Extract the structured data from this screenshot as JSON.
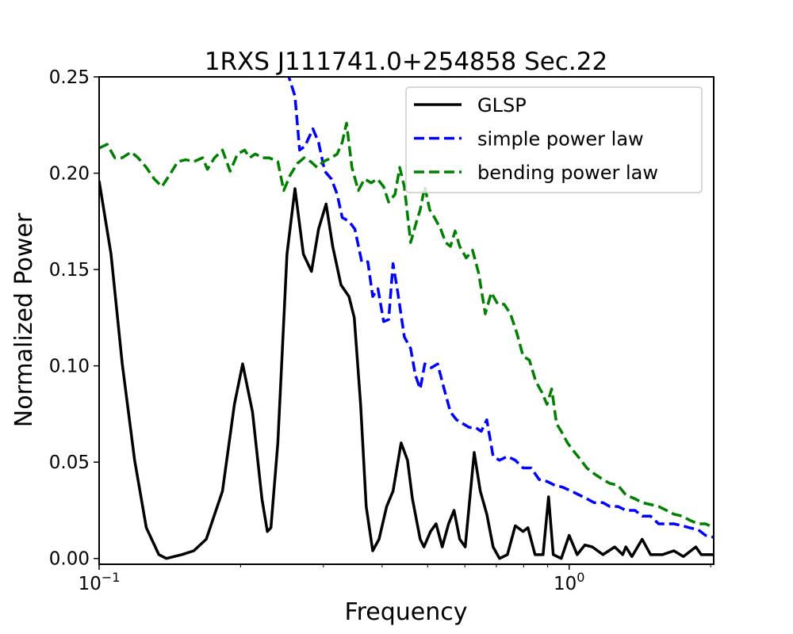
{
  "chart_data": {
    "type": "line",
    "title": "1RXS J111741.0+254858 Sec.22",
    "xlabel": "Frequency",
    "ylabel": "Normalized Power",
    "xscale": "log",
    "xlim": [
      0.1,
      2.03
    ],
    "ylim": [
      -0.003,
      0.25
    ],
    "xticks": [
      {
        "value": 0.1,
        "label": "10",
        "exponent": "−1"
      },
      {
        "value": 1,
        "label": "10",
        "exponent": "0"
      }
    ],
    "xminorticks": [
      0.2,
      0.3,
      0.4,
      0.5,
      0.6,
      0.7,
      0.8,
      0.9,
      2
    ],
    "yticks": [
      {
        "value": 0,
        "label": "0.00"
      },
      {
        "value": 0.05,
        "label": "0.05"
      },
      {
        "value": 0.1,
        "label": "0.10"
      },
      {
        "value": 0.15,
        "label": "0.15"
      },
      {
        "value": 0.2,
        "label": "0.20"
      },
      {
        "value": 0.25,
        "label": "0.25"
      }
    ],
    "grid": false,
    "legend": "upper right",
    "series": [
      {
        "name": "GLSP",
        "color": "#000000",
        "linestyle": "solid",
        "x": [
          0.1,
          0.106,
          0.112,
          0.119,
          0.126,
          0.134,
          0.139,
          0.15,
          0.159,
          0.169,
          0.183,
          0.194,
          0.202,
          0.212,
          0.222,
          0.228,
          0.232,
          0.24,
          0.251,
          0.261,
          0.272,
          0.283,
          0.293,
          0.304,
          0.314,
          0.327,
          0.34,
          0.349,
          0.36,
          0.37,
          0.382,
          0.394,
          0.409,
          0.422,
          0.439,
          0.453,
          0.464,
          0.482,
          0.491,
          0.507,
          0.521,
          0.537,
          0.554,
          0.569,
          0.585,
          0.601,
          0.628,
          0.647,
          0.668,
          0.689,
          0.711,
          0.739,
          0.768,
          0.798,
          0.817,
          0.846,
          0.88,
          0.904,
          0.925,
          0.962,
          1.0,
          1.04,
          1.08,
          1.12,
          1.18,
          1.25,
          1.3,
          1.32,
          1.36,
          1.43,
          1.49,
          1.58,
          1.67,
          1.75,
          1.86,
          1.91,
          2.03
        ],
        "values": [
          0.196,
          0.158,
          0.101,
          0.051,
          0.016,
          0.002,
          0,
          0.002,
          0.004,
          0.01,
          0.035,
          0.08,
          0.101,
          0.076,
          0.031,
          0.014,
          0.016,
          0.06,
          0.158,
          0.192,
          0.158,
          0.149,
          0.171,
          0.184,
          0.162,
          0.142,
          0.136,
          0.125,
          0.08,
          0.027,
          0.004,
          0.01,
          0.027,
          0.035,
          0.06,
          0.051,
          0.031,
          0.01,
          0.006,
          0.014,
          0.018,
          0.006,
          0.018,
          0.025,
          0.01,
          0.006,
          0.055,
          0.035,
          0.023,
          0.006,
          0,
          0.002,
          0.017,
          0.014,
          0.016,
          0.002,
          0.002,
          0.032,
          0.002,
          0,
          0.012,
          0.002,
          0.007,
          0.006,
          0.002,
          0.006,
          0.002,
          0.006,
          0.001,
          0.01,
          0.002,
          0.002,
          0.004,
          0.001,
          0.006,
          0.002,
          0.002
        ]
      },
      {
        "name": "simple power law",
        "color": "#0000ff",
        "linestyle": "dashed",
        "x": [
          0.251,
          0.261,
          0.267,
          0.274,
          0.285,
          0.293,
          0.302,
          0.312,
          0.321,
          0.329,
          0.34,
          0.35,
          0.362,
          0.373,
          0.382,
          0.392,
          0.403,
          0.413,
          0.422,
          0.432,
          0.446,
          0.46,
          0.471,
          0.482,
          0.493,
          0.509,
          0.525,
          0.542,
          0.559,
          0.576,
          0.594,
          0.613,
          0.632,
          0.65,
          0.668,
          0.689,
          0.711,
          0.739,
          0.768,
          0.798,
          0.83,
          0.863,
          0.897,
          0.932,
          0.969,
          1.01,
          1.05,
          1.09,
          1.13,
          1.18,
          1.22,
          1.27,
          1.32,
          1.38,
          1.43,
          1.49,
          1.55,
          1.61,
          1.67,
          1.74,
          1.8,
          1.88,
          1.95,
          2.03
        ],
        "values": [
          0.253,
          0.24,
          0.212,
          0.214,
          0.223,
          0.216,
          0.201,
          0.197,
          0.189,
          0.177,
          0.175,
          0.171,
          0.154,
          0.154,
          0.136,
          0.14,
          0.123,
          0.124,
          0.153,
          0.138,
          0.115,
          0.109,
          0.095,
          0.088,
          0.101,
          0.099,
          0.101,
          0.088,
          0.076,
          0.072,
          0.07,
          0.068,
          0.068,
          0.066,
          0.072,
          0.053,
          0.051,
          0.053,
          0.051,
          0.047,
          0.047,
          0.041,
          0.04,
          0.038,
          0.037,
          0.035,
          0.033,
          0.031,
          0.029,
          0.029,
          0.027,
          0.027,
          0.025,
          0.025,
          0.022,
          0.022,
          0.018,
          0.018,
          0.018,
          0.017,
          0.016,
          0.015,
          0.012,
          0.011
        ]
      },
      {
        "name": "bending power law",
        "color": "#008000",
        "linestyle": "dashed",
        "x": [
          0.1,
          0.104,
          0.108,
          0.112,
          0.117,
          0.121,
          0.126,
          0.131,
          0.136,
          0.142,
          0.147,
          0.153,
          0.159,
          0.166,
          0.17,
          0.176,
          0.183,
          0.19,
          0.197,
          0.204,
          0.209,
          0.215,
          0.222,
          0.23,
          0.24,
          0.247,
          0.255,
          0.264,
          0.273,
          0.282,
          0.291,
          0.3,
          0.312,
          0.321,
          0.329,
          0.336,
          0.345,
          0.356,
          0.367,
          0.379,
          0.391,
          0.403,
          0.413,
          0.426,
          0.436,
          0.446,
          0.46,
          0.471,
          0.482,
          0.493,
          0.505,
          0.517,
          0.533,
          0.546,
          0.559,
          0.572,
          0.585,
          0.604,
          0.623,
          0.642,
          0.663,
          0.683,
          0.705,
          0.727,
          0.75,
          0.774,
          0.798,
          0.823,
          0.849,
          0.876,
          0.897,
          0.918,
          0.94,
          0.962,
          0.992,
          1.02,
          1.06,
          1.09,
          1.13,
          1.18,
          1.22,
          1.27,
          1.32,
          1.38,
          1.43,
          1.49,
          1.55,
          1.61,
          1.67,
          1.74,
          1.8,
          1.88,
          1.95,
          2.03
        ],
        "values": [
          0.213,
          0.215,
          0.208,
          0.208,
          0.211,
          0.208,
          0.203,
          0.197,
          0.193,
          0.2,
          0.206,
          0.207,
          0.206,
          0.208,
          0.202,
          0.208,
          0.212,
          0.201,
          0.21,
          0.212,
          0.208,
          0.21,
          0.208,
          0.208,
          0.206,
          0.191,
          0.199,
          0.205,
          0.208,
          0.206,
          0.203,
          0.206,
          0.208,
          0.21,
          0.216,
          0.226,
          0.203,
          0.191,
          0.197,
          0.195,
          0.197,
          0.193,
          0.185,
          0.189,
          0.203,
          0.193,
          0.164,
          0.173,
          0.181,
          0.193,
          0.181,
          0.177,
          0.171,
          0.164,
          0.162,
          0.17,
          0.162,
          0.156,
          0.16,
          0.148,
          0.127,
          0.138,
          0.132,
          0.132,
          0.127,
          0.117,
          0.105,
          0.103,
          0.092,
          0.086,
          0.08,
          0.088,
          0.07,
          0.066,
          0.06,
          0.056,
          0.051,
          0.047,
          0.044,
          0.041,
          0.039,
          0.038,
          0.033,
          0.031,
          0.029,
          0.028,
          0.027,
          0.025,
          0.023,
          0.022,
          0.02,
          0.018,
          0.018,
          0.016
        ]
      }
    ]
  }
}
